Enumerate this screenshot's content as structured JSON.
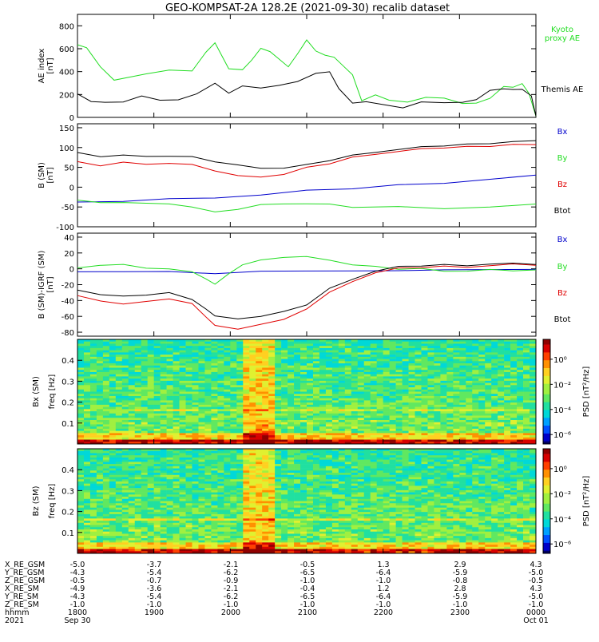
{
  "title": "GEO-KOMPSAT-2A 128.2E (2021-09-30) recalib dataset",
  "colors": {
    "black": "#000000",
    "red": "#e00000",
    "green": "#22dd22",
    "blue": "#0000cc"
  },
  "chart_data": [
    {
      "type": "line",
      "ylabel": "AE index\n[nT]",
      "ylim": [
        0,
        900
      ],
      "yticks": [
        0,
        200,
        400,
        600,
        800
      ],
      "xlim": [
        0,
        1
      ],
      "series": [
        {
          "name": "Kyoto\nproxy AE",
          "color": "#22dd22",
          "x": [
            0.0,
            0.02,
            0.05,
            0.08,
            0.12,
            0.15,
            0.2,
            0.25,
            0.28,
            0.3,
            0.33,
            0.36,
            0.38,
            0.4,
            0.42,
            0.44,
            0.46,
            0.48,
            0.5,
            0.52,
            0.54,
            0.56,
            0.58,
            0.6,
            0.62,
            0.65,
            0.68,
            0.72,
            0.76,
            0.8,
            0.84,
            0.87,
            0.9,
            0.93,
            0.95,
            0.97,
            0.985,
            1.0
          ],
          "y": [
            610,
            600,
            450,
            350,
            340,
            380,
            430,
            380,
            560,
            660,
            450,
            400,
            500,
            620,
            550,
            500,
            450,
            580,
            660,
            580,
            560,
            500,
            440,
            380,
            170,
            180,
            150,
            150,
            150,
            160,
            130,
            150,
            150,
            270,
            280,
            270,
            200,
            20
          ]
        },
        {
          "name": "Themis AE",
          "color": "#000000",
          "x": [
            0.0,
            0.03,
            0.06,
            0.1,
            0.14,
            0.18,
            0.22,
            0.26,
            0.3,
            0.33,
            0.36,
            0.4,
            0.44,
            0.48,
            0.52,
            0.55,
            0.57,
            0.6,
            0.63,
            0.67,
            0.71,
            0.75,
            0.8,
            0.84,
            0.87,
            0.9,
            0.93,
            0.95,
            0.97,
            0.99,
            1.0
          ],
          "y": [
            180,
            130,
            140,
            160,
            170,
            150,
            170,
            180,
            290,
            220,
            300,
            240,
            280,
            330,
            360,
            390,
            260,
            150,
            120,
            110,
            100,
            110,
            120,
            140,
            180,
            220,
            250,
            260,
            220,
            180,
            20
          ]
        }
      ]
    },
    {
      "type": "line",
      "ylabel": "B (SM)\n[nT]",
      "ylim": [
        -100,
        160
      ],
      "yticks": [
        -100,
        -50,
        0,
        50,
        100,
        150
      ],
      "xlim": [
        0,
        1
      ],
      "series": [
        {
          "name": "Bx",
          "color": "#0000cc",
          "x": [
            0.0,
            0.1,
            0.2,
            0.3,
            0.4,
            0.5,
            0.6,
            0.7,
            0.8,
            0.9,
            1.0
          ],
          "y": [
            -40,
            -35,
            -30,
            -25,
            -20,
            -10,
            -3,
            5,
            12,
            20,
            28
          ]
        },
        {
          "name": "By",
          "color": "#22dd22",
          "x": [
            0.0,
            0.05,
            0.1,
            0.2,
            0.25,
            0.3,
            0.35,
            0.4,
            0.45,
            0.5,
            0.55,
            0.6,
            0.7,
            0.8,
            0.9,
            1.0
          ],
          "y": [
            -35,
            -38,
            -40,
            -40,
            -50,
            -65,
            -55,
            -45,
            -40,
            -42,
            -45,
            -50,
            -50,
            -52,
            -50,
            -45
          ]
        },
        {
          "name": "Bz",
          "color": "#e00000",
          "x": [
            0.0,
            0.05,
            0.1,
            0.15,
            0.2,
            0.25,
            0.3,
            0.35,
            0.4,
            0.45,
            0.5,
            0.55,
            0.6,
            0.65,
            0.7,
            0.75,
            0.8,
            0.85,
            0.9,
            0.95,
            1.0
          ],
          "y": [
            62,
            55,
            62,
            60,
            60,
            55,
            42,
            28,
            28,
            32,
            48,
            60,
            75,
            85,
            90,
            95,
            100,
            102,
            105,
            108,
            105
          ]
        },
        {
          "name": "Btot",
          "color": "#000000",
          "x": [
            0.0,
            0.05,
            0.1,
            0.15,
            0.2,
            0.25,
            0.3,
            0.35,
            0.4,
            0.45,
            0.5,
            0.55,
            0.6,
            0.65,
            0.7,
            0.75,
            0.8,
            0.85,
            0.9,
            0.95,
            1.0
          ],
          "y": [
            85,
            78,
            80,
            80,
            78,
            75,
            65,
            55,
            50,
            48,
            55,
            68,
            80,
            90,
            95,
            100,
            105,
            108,
            112,
            115,
            115
          ]
        }
      ]
    },
    {
      "type": "line",
      "ylabel": "B (SM)-IGRF (SM)\n[nT]",
      "ylim": [
        -85,
        45
      ],
      "yticks": [
        -80,
        -60,
        -40,
        -20,
        0,
        20,
        40
      ],
      "xlim": [
        0,
        1
      ],
      "series": [
        {
          "name": "Bx",
          "color": "#0000cc",
          "x": [
            0.0,
            0.1,
            0.2,
            0.3,
            0.4,
            0.5,
            0.6,
            0.7,
            0.8,
            0.9,
            1.0
          ],
          "y": [
            -5,
            -3,
            -4,
            -5,
            -3,
            -4,
            -2,
            -3,
            0,
            -1,
            -2
          ]
        },
        {
          "name": "By",
          "color": "#22dd22",
          "x": [
            0.0,
            0.05,
            0.1,
            0.15,
            0.2,
            0.25,
            0.28,
            0.3,
            0.33,
            0.36,
            0.4,
            0.45,
            0.5,
            0.55,
            0.6,
            0.65,
            0.7,
            0.75,
            0.8,
            0.85,
            0.9,
            0.95,
            1.0
          ],
          "y": [
            0,
            5,
            5,
            2,
            0,
            -5,
            -12,
            -20,
            -5,
            5,
            10,
            15,
            15,
            12,
            5,
            2,
            0,
            0,
            -2,
            -3,
            -2,
            -2,
            -2
          ]
        },
        {
          "name": "Bz",
          "color": "#e00000",
          "x": [
            0.0,
            0.05,
            0.1,
            0.15,
            0.2,
            0.25,
            0.28,
            0.3,
            0.35,
            0.4,
            0.45,
            0.5,
            0.55,
            0.6,
            0.65,
            0.7,
            0.75,
            0.8,
            0.85,
            0.9,
            0.95,
            1.0
          ],
          "y": [
            -35,
            -40,
            -45,
            -40,
            -38,
            -45,
            -60,
            -72,
            -75,
            -70,
            -65,
            -50,
            -30,
            -15,
            -5,
            0,
            2,
            3,
            3,
            4,
            5,
            5
          ]
        },
        {
          "name": "Btot",
          "color": "#000000",
          "x": [
            0.0,
            0.05,
            0.1,
            0.15,
            0.2,
            0.25,
            0.28,
            0.3,
            0.35,
            0.4,
            0.45,
            0.5,
            0.55,
            0.6,
            0.65,
            0.7,
            0.75,
            0.8,
            0.85,
            0.9,
            0.95,
            1.0
          ],
          "y": [
            -28,
            -32,
            -35,
            -32,
            -30,
            -40,
            -50,
            -60,
            -62,
            -60,
            -55,
            -45,
            -25,
            -12,
            -3,
            2,
            4,
            5,
            5,
            6,
            6,
            6
          ]
        }
      ]
    },
    {
      "type": "heatmap",
      "ylabel": "Bx (SM)",
      "sublabel": "freq [Hz]",
      "ylim": [
        0,
        0.5
      ],
      "yticks": [
        0.1,
        0.2,
        0.3,
        0.4
      ],
      "colorbar_label": "PSD [nT²/Hz]",
      "colorbar_ticks": [
        "10⁰",
        "10⁻²",
        "10⁻⁴",
        "10⁻⁶"
      ]
    },
    {
      "type": "heatmap",
      "ylabel": "Bz (SM)",
      "sublabel": "freq [Hz]",
      "ylim": [
        0,
        0.5
      ],
      "yticks": [
        0.1,
        0.2,
        0.3,
        0.4
      ],
      "colorbar_label": "PSD [nT²/Hz]",
      "colorbar_ticks": [
        "10⁰",
        "10⁻²",
        "10⁻⁴",
        "10⁻⁶"
      ]
    }
  ],
  "ephemeris": {
    "rows": [
      {
        "label": "X_RE_GSM",
        "values": [
          "-5.0",
          "-3.7",
          "-2.1",
          "-0.5",
          "1.3",
          "2.9",
          "4.3"
        ]
      },
      {
        "label": "Y_RE_GSM",
        "values": [
          "-4.3",
          "-5.4",
          "-6.2",
          "-6.5",
          "-6.4",
          "-5.9",
          "-5.0"
        ]
      },
      {
        "label": "Z_RE_GSM",
        "values": [
          "-0.5",
          "-0.7",
          "-0.9",
          "-1.0",
          "-1.0",
          "-0.8",
          "-0.5"
        ]
      },
      {
        "label": "X_RE_SM",
        "values": [
          "-4.9",
          "-3.6",
          "-2.1",
          "-0.4",
          "1.2",
          "2.8",
          "4.3"
        ]
      },
      {
        "label": "Y_RE_SM",
        "values": [
          "-4.3",
          "-5.4",
          "-6.2",
          "-6.5",
          "-6.4",
          "-5.9",
          "-5.0"
        ]
      },
      {
        "label": "Z_RE_SM",
        "values": [
          "-1.0",
          "-1.0",
          "-1.0",
          "-1.0",
          "-1.0",
          "-1.0",
          "-1.0"
        ]
      },
      {
        "label": "hhmm",
        "values": [
          "1800",
          "1900",
          "2000",
          "2100",
          "2200",
          "2300",
          "0000"
        ]
      }
    ],
    "year": "2021",
    "date_start": "Sep 30",
    "date_end": "Oct 01"
  }
}
